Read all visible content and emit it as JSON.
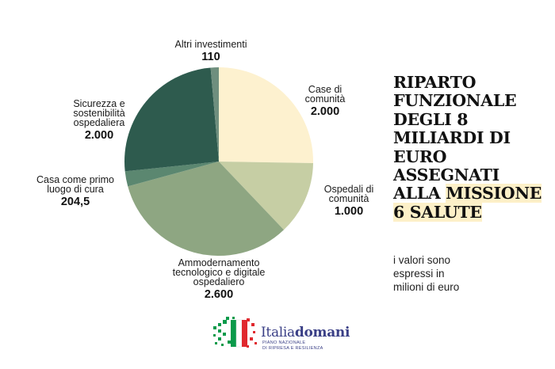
{
  "title_lines": [
    {
      "text": "RIPARTO"
    },
    {
      "text": "FUNZIONALE"
    },
    {
      "text": "DEGLI 8"
    },
    {
      "text": "MILIARDI DI"
    },
    {
      "text": "EURO"
    },
    {
      "text": "ASSEGNATI"
    },
    {
      "pre": "ALLA ",
      "hl": "MISSIONE"
    },
    {
      "hl": "6 SALUTE "
    }
  ],
  "note_lines": [
    "i valori sono",
    "espressi in",
    "milioni di euro"
  ],
  "logo": {
    "name_regular": "Italia",
    "name_bold": "domani",
    "sub_lines": [
      "PIANO NAZIONALE",
      "DI RIPRESA E RESILIENZA"
    ],
    "colors": {
      "green": "#0a9a4a",
      "red": "#e0282e",
      "blue": "#3a3f86"
    }
  },
  "chart_data": {
    "type": "pie",
    "title": "",
    "slices": [
      {
        "label_lines": [
          "Case di",
          "comunità"
        ],
        "value": 2000,
        "value_label": "2.000",
        "color": "#fdf1cf"
      },
      {
        "label_lines": [
          "Ospedali di",
          "comunità"
        ],
        "value": 1000,
        "value_label": "1.000",
        "color": "#c6cea4"
      },
      {
        "label_lines": [
          "Ammodernamento",
          "tecnologico e digitale",
          "ospedaliero"
        ],
        "value": 2600,
        "value_label": "2.600",
        "color": "#8ea682"
      },
      {
        "label_lines": [
          "Casa come primo",
          "luogo di cura"
        ],
        "value": 204.5,
        "value_label": "204,5",
        "color": "#5b8770"
      },
      {
        "label_lines": [
          "Sicurezza e",
          "sostenibilità",
          "ospedaliera"
        ],
        "value": 2000,
        "value_label": "2.000",
        "color": "#2e5b4e"
      },
      {
        "label_lines": [
          "Altri investimenti"
        ],
        "value": 110,
        "value_label": "110",
        "color": "#6f8f7e"
      }
    ],
    "start_angle_deg": 0,
    "direction": "clockwise",
    "legend": "none"
  }
}
